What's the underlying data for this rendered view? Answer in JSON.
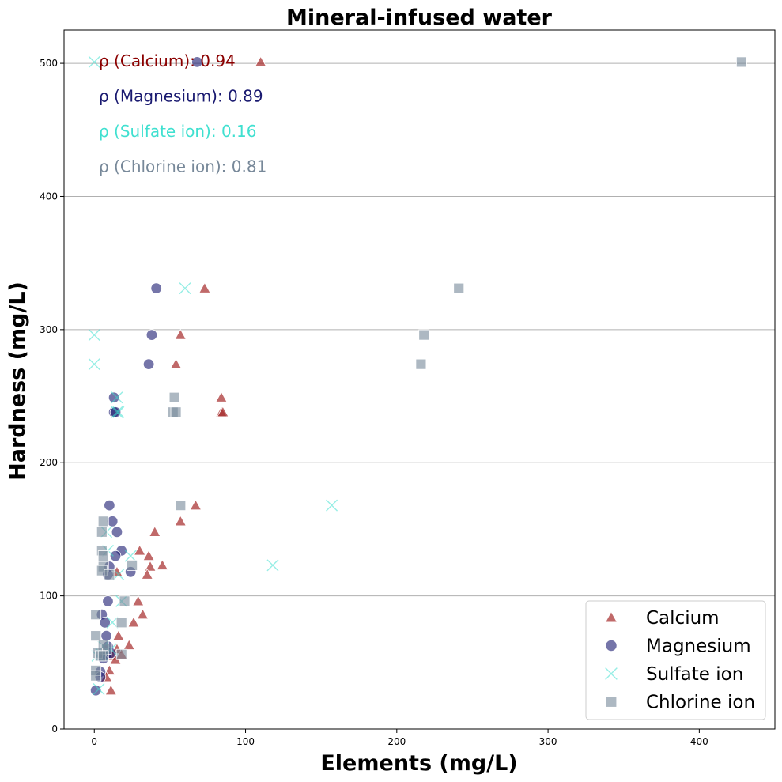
{
  "chart_data": {
    "type": "scatter",
    "title": "Mineral-infused water",
    "xlabel": "Elements (mg/L)",
    "ylabel": "Hardness (mg/L)",
    "xlim": [
      -20,
      450
    ],
    "ylim": [
      0,
      525
    ],
    "xticks": [
      0,
      100,
      200,
      300,
      400
    ],
    "yticks": [
      0,
      100,
      200,
      300,
      400,
      500
    ],
    "grid": "horizontal",
    "legend_position": "lower-right",
    "annotations": [
      {
        "text": "ρ (Calcium): 0.94",
        "color": "#8b0000"
      },
      {
        "text": "ρ (Magnesium): 0.89",
        "color": "#191970"
      },
      {
        "text": "ρ (Sulfate ion): 0.16",
        "color": "#40e0d0"
      },
      {
        "text": "ρ (Chlorine ion): 0.81",
        "color": "#778899"
      }
    ],
    "series": [
      {
        "name": "Calcium",
        "marker": "triangle",
        "color": "#a52a2a",
        "points": [
          [
            110,
            501
          ],
          [
            73,
            331
          ],
          [
            57,
            296
          ],
          [
            54,
            274
          ],
          [
            84,
            249
          ],
          [
            84,
            238
          ],
          [
            85,
            238
          ],
          [
            67,
            168
          ],
          [
            57,
            156
          ],
          [
            40,
            148
          ],
          [
            30,
            134
          ],
          [
            45,
            123
          ],
          [
            36,
            130
          ],
          [
            37,
            122
          ],
          [
            35,
            116
          ],
          [
            15,
            118
          ],
          [
            29,
            96
          ],
          [
            32,
            86
          ],
          [
            26,
            80
          ],
          [
            16,
            70
          ],
          [
            23,
            63
          ],
          [
            15,
            60
          ],
          [
            12,
            55
          ],
          [
            14,
            52
          ],
          [
            10,
            44
          ],
          [
            8,
            39
          ],
          [
            11,
            29
          ],
          [
            18,
            56
          ]
        ]
      },
      {
        "name": "Magnesium",
        "marker": "circle",
        "color": "#191970",
        "points": [
          [
            68,
            501
          ],
          [
            41,
            331
          ],
          [
            38,
            296
          ],
          [
            36,
            274
          ],
          [
            13,
            249
          ],
          [
            13,
            238
          ],
          [
            14,
            238
          ],
          [
            10,
            168
          ],
          [
            12,
            156
          ],
          [
            15,
            148
          ],
          [
            18,
            134
          ],
          [
            14,
            130
          ],
          [
            10,
            122
          ],
          [
            24,
            118
          ],
          [
            9,
            116
          ],
          [
            9,
            96
          ],
          [
            5,
            86
          ],
          [
            7,
            80
          ],
          [
            8,
            70
          ],
          [
            9,
            62
          ],
          [
            8,
            56
          ],
          [
            6,
            53
          ],
          [
            4,
            43
          ],
          [
            4,
            39
          ],
          [
            1,
            29
          ],
          [
            11,
            57
          ]
        ]
      },
      {
        "name": "Sulfate ion",
        "marker": "x",
        "color": "#40e0d0",
        "points": [
          [
            0,
            501
          ],
          [
            60,
            331
          ],
          [
            0,
            296
          ],
          [
            0,
            274
          ],
          [
            15,
            249
          ],
          [
            15,
            238
          ],
          [
            16,
            238
          ],
          [
            157,
            168
          ],
          [
            118,
            123
          ],
          [
            8,
            148
          ],
          [
            24,
            130
          ],
          [
            9,
            134
          ],
          [
            16,
            116
          ],
          [
            18,
            96
          ],
          [
            12,
            80
          ],
          [
            6,
            62
          ],
          [
            5,
            56
          ],
          [
            3,
            30
          ],
          [
            11,
            60
          ],
          [
            2,
            55
          ]
        ]
      },
      {
        "name": "Chlorine ion",
        "marker": "square",
        "color": "#778899",
        "points": [
          [
            428,
            501
          ],
          [
            241,
            331
          ],
          [
            218,
            296
          ],
          [
            216,
            274
          ],
          [
            53,
            249
          ],
          [
            52,
            238
          ],
          [
            54,
            238
          ],
          [
            57,
            168
          ],
          [
            6,
            156
          ],
          [
            5,
            148
          ],
          [
            5,
            134
          ],
          [
            6,
            130
          ],
          [
            6,
            122
          ],
          [
            25,
            123
          ],
          [
            5,
            119
          ],
          [
            10,
            116
          ],
          [
            20,
            96
          ],
          [
            1,
            86
          ],
          [
            18,
            80
          ],
          [
            1,
            70
          ],
          [
            6,
            63
          ],
          [
            8,
            60
          ],
          [
            2,
            57
          ],
          [
            4,
            55
          ],
          [
            18,
            56
          ],
          [
            1,
            44
          ],
          [
            1,
            40
          ],
          [
            6,
            55
          ]
        ]
      }
    ]
  }
}
